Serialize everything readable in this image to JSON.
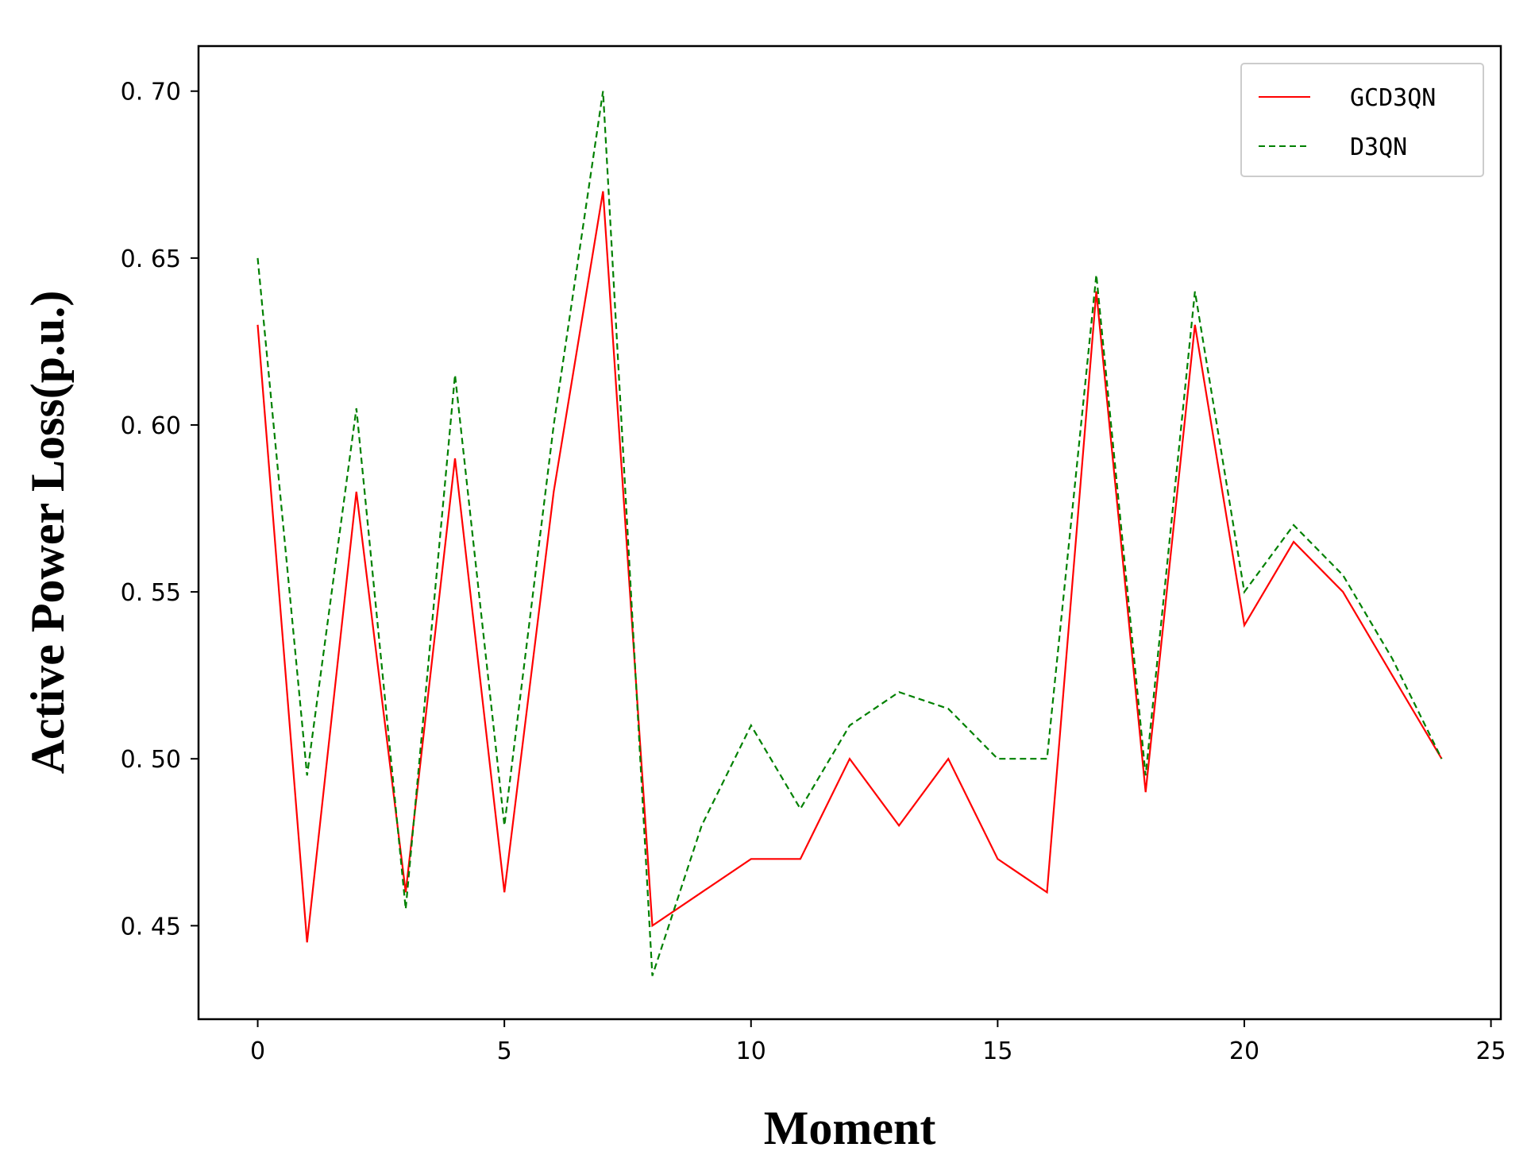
{
  "chart_data": {
    "type": "line",
    "xlabel": "Moment",
    "ylabel": "Active Power Loss(p.u.)",
    "xlim": [
      -1.2,
      25.2
    ],
    "ylim": [
      0.422,
      0.7135
    ],
    "xticks": [
      0,
      5,
      10,
      15,
      20,
      25
    ],
    "yticks": [
      0.45,
      0.5,
      0.55,
      0.6,
      0.65,
      0.7
    ],
    "xtick_labels": [
      "0",
      "5",
      "10",
      "15",
      "20",
      "25"
    ],
    "ytick_labels": [
      "0. 45",
      "0. 50",
      "0. 55",
      "0. 60",
      "0. 65",
      "0. 70"
    ],
    "grid": false,
    "legend_position": "top-right",
    "x": [
      0,
      1,
      2,
      3,
      4,
      5,
      6,
      7,
      8,
      9,
      10,
      11,
      12,
      13,
      14,
      15,
      16,
      17,
      18,
      19,
      20,
      21,
      22,
      23,
      24
    ],
    "series": [
      {
        "name": "GCD3QN",
        "color": "#ff0000",
        "style": "solid",
        "values": [
          0.63,
          0.445,
          0.58,
          0.46,
          0.59,
          0.46,
          0.58,
          0.67,
          0.45,
          0.46,
          0.47,
          0.47,
          0.5,
          0.48,
          0.5,
          0.47,
          0.46,
          0.64,
          0.49,
          0.63,
          0.54,
          0.565,
          0.55,
          0.525,
          0.5
        ]
      },
      {
        "name": "D3QN",
        "color": "#008000",
        "style": "dashed",
        "values": [
          0.65,
          0.495,
          0.605,
          0.455,
          0.615,
          0.48,
          0.6,
          0.7,
          0.435,
          0.48,
          0.51,
          0.485,
          0.51,
          0.52,
          0.515,
          0.5,
          0.5,
          0.645,
          0.495,
          0.64,
          0.55,
          0.57,
          0.555,
          0.53,
          0.5
        ]
      }
    ]
  }
}
